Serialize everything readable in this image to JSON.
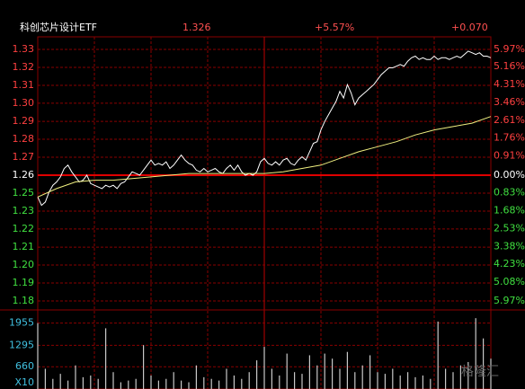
{
  "chart_data": [
    {
      "type": "line",
      "title": "科创芯片设计ETF",
      "stats": [
        "1.326",
        "+5.57%",
        "+0.070"
      ],
      "xlim": [
        0,
        240
      ],
      "xticks": [
        0,
        30,
        60,
        90,
        120,
        150,
        180,
        210,
        240
      ],
      "ylim": [
        1.181,
        1.331
      ],
      "yticks": [
        {
          "value": 1.331,
          "label": "1.33"
        },
        {
          "value": 1.3203,
          "label": "1.32"
        },
        {
          "value": 1.3096,
          "label": "1.31"
        },
        {
          "value": 1.2989,
          "label": "1.30"
        },
        {
          "value": 1.2881,
          "label": "1.29"
        },
        {
          "value": 1.2774,
          "label": "1.28"
        },
        {
          "value": 1.2667,
          "label": "1.27"
        },
        {
          "value": 1.256,
          "label": "1.26"
        },
        {
          "value": 1.2453,
          "label": "1.25"
        },
        {
          "value": 1.2346,
          "label": "1.23"
        },
        {
          "value": 1.2239,
          "label": "1.22"
        },
        {
          "value": 1.2131,
          "label": "1.21"
        },
        {
          "value": 1.2024,
          "label": "1.20"
        },
        {
          "value": 1.1917,
          "label": "1.19"
        },
        {
          "value": 1.181,
          "label": "1.18"
        }
      ],
      "y2lim": [
        -5.97,
        5.97
      ],
      "y2ticks": [
        {
          "value": 5.97,
          "label": "5.97%"
        },
        {
          "value": 5.16,
          "label": "5.16%"
        },
        {
          "value": 4.31,
          "label": "4.31%"
        },
        {
          "value": 3.46,
          "label": "3.46%"
        },
        {
          "value": 2.61,
          "label": "2.61%"
        },
        {
          "value": 1.76,
          "label": "1.76%"
        },
        {
          "value": 0.91,
          "label": "0.91%"
        },
        {
          "value": 0,
          "label": "0.00%"
        },
        {
          "value": -0.83,
          "label": "0.83%"
        },
        {
          "value": -1.68,
          "label": "1.68%"
        },
        {
          "value": -2.53,
          "label": "2.53%"
        },
        {
          "value": -3.38,
          "label": "3.38%"
        },
        {
          "value": -4.23,
          "label": "4.23%"
        },
        {
          "value": -5.08,
          "label": "5.08%"
        },
        {
          "value": -5.97,
          "label": "5.97%"
        }
      ],
      "grid": true,
      "series": [
        {
          "color": "#ffffff",
          "x": [
            0,
            2,
            4,
            6,
            8,
            10,
            12,
            14,
            16,
            18,
            20,
            22,
            24,
            26,
            28,
            30,
            32,
            34,
            36,
            38,
            40,
            42,
            44,
            46,
            48,
            50,
            52,
            54,
            56,
            58,
            60,
            62,
            64,
            66,
            68,
            70,
            72,
            74,
            76,
            78,
            80,
            82,
            84,
            86,
            88,
            90,
            92,
            94,
            96,
            98,
            100,
            102,
            104,
            106,
            108,
            110,
            112,
            114,
            116,
            118,
            120,
            122,
            124,
            126,
            128,
            130,
            132,
            134,
            136,
            138,
            140,
            142,
            144,
            146,
            148,
            150,
            152,
            154,
            156,
            158,
            160,
            162,
            164,
            166,
            168,
            170,
            172,
            174,
            176,
            178,
            180,
            182,
            184,
            186,
            188,
            190,
            192,
            194,
            196,
            198,
            200,
            202,
            204,
            206,
            208,
            210,
            212,
            214,
            216,
            218,
            220,
            222,
            224,
            226,
            228,
            230,
            232,
            234,
            236,
            238,
            240
          ],
          "values": [
            1.243,
            1.238,
            1.24,
            1.246,
            1.25,
            1.252,
            1.255,
            1.26,
            1.262,
            1.258,
            1.255,
            1.252,
            1.253,
            1.256,
            1.251,
            1.25,
            1.249,
            1.248,
            1.25,
            1.249,
            1.25,
            1.248,
            1.251,
            1.252,
            1.255,
            1.258,
            1.257,
            1.256,
            1.259,
            1.262,
            1.265,
            1.262,
            1.263,
            1.262,
            1.264,
            1.26,
            1.262,
            1.265,
            1.268,
            1.265,
            1.263,
            1.262,
            1.259,
            1.258,
            1.26,
            1.258,
            1.259,
            1.26,
            1.258,
            1.257,
            1.26,
            1.262,
            1.259,
            1.262,
            1.258,
            1.256,
            1.257,
            1.256,
            1.258,
            1.264,
            1.266,
            1.263,
            1.262,
            1.264,
            1.262,
            1.265,
            1.266,
            1.263,
            1.262,
            1.265,
            1.267,
            1.265,
            1.27,
            1.275,
            1.276,
            1.283,
            1.288,
            1.292,
            1.296,
            1.3,
            1.306,
            1.302,
            1.31,
            1.305,
            1.298,
            1.302,
            1.304,
            1.306,
            1.308,
            1.31,
            1.313,
            1.316,
            1.318,
            1.32,
            1.32,
            1.321,
            1.322,
            1.321,
            1.324,
            1.326,
            1.327,
            1.325,
            1.326,
            1.325,
            1.325,
            1.327,
            1.325,
            1.326,
            1.326,
            1.325,
            1.326,
            1.327,
            1.326,
            1.328,
            1.33,
            1.329,
            1.328,
            1.329,
            1.327,
            1.327,
            1.326
          ]
        },
        {
          "color": "#f0f080",
          "x": [
            0,
            10,
            20,
            30,
            40,
            50,
            60,
            70,
            80,
            90,
            100,
            110,
            120,
            130,
            140,
            150,
            160,
            170,
            180,
            190,
            200,
            210,
            220,
            230,
            240
          ],
          "values": [
            1.243,
            1.248,
            1.252,
            1.253,
            1.253,
            1.254,
            1.255,
            1.256,
            1.257,
            1.257,
            1.257,
            1.257,
            1.257,
            1.258,
            1.26,
            1.262,
            1.266,
            1.27,
            1.273,
            1.276,
            1.28,
            1.283,
            1.285,
            1.287,
            1.291
          ]
        }
      ]
    },
    {
      "type": "bar",
      "unit": "X10",
      "color": "#c8c8c8",
      "xlim": [
        0,
        240
      ],
      "ylim": [
        0,
        2344
      ],
      "yticks": [
        660,
        1295,
        1955
      ],
      "x": [
        0,
        4,
        8,
        12,
        16,
        20,
        24,
        28,
        32,
        36,
        40,
        44,
        48,
        52,
        56,
        60,
        64,
        68,
        72,
        76,
        80,
        84,
        88,
        92,
        96,
        100,
        104,
        108,
        112,
        116,
        120,
        124,
        128,
        132,
        136,
        140,
        144,
        148,
        152,
        156,
        160,
        164,
        168,
        172,
        176,
        180,
        184,
        188,
        192,
        196,
        200,
        204,
        208,
        212,
        216,
        220,
        224,
        228,
        232,
        236,
        240
      ],
      "values": [
        1955,
        600,
        300,
        450,
        250,
        700,
        350,
        400,
        300,
        1800,
        500,
        200,
        250,
        300,
        1300,
        400,
        250,
        300,
        500,
        250,
        200,
        700,
        350,
        300,
        250,
        600,
        400,
        300,
        500,
        850,
        1250,
        600,
        400,
        1050,
        500,
        450,
        1000,
        700,
        1050,
        900,
        600,
        1100,
        500,
        700,
        1000,
        500,
        450,
        600,
        400,
        500,
        350,
        400,
        300,
        2000,
        600,
        500,
        700,
        800,
        2100,
        1500,
        900
      ]
    }
  ],
  "watermark": "格隆汇"
}
